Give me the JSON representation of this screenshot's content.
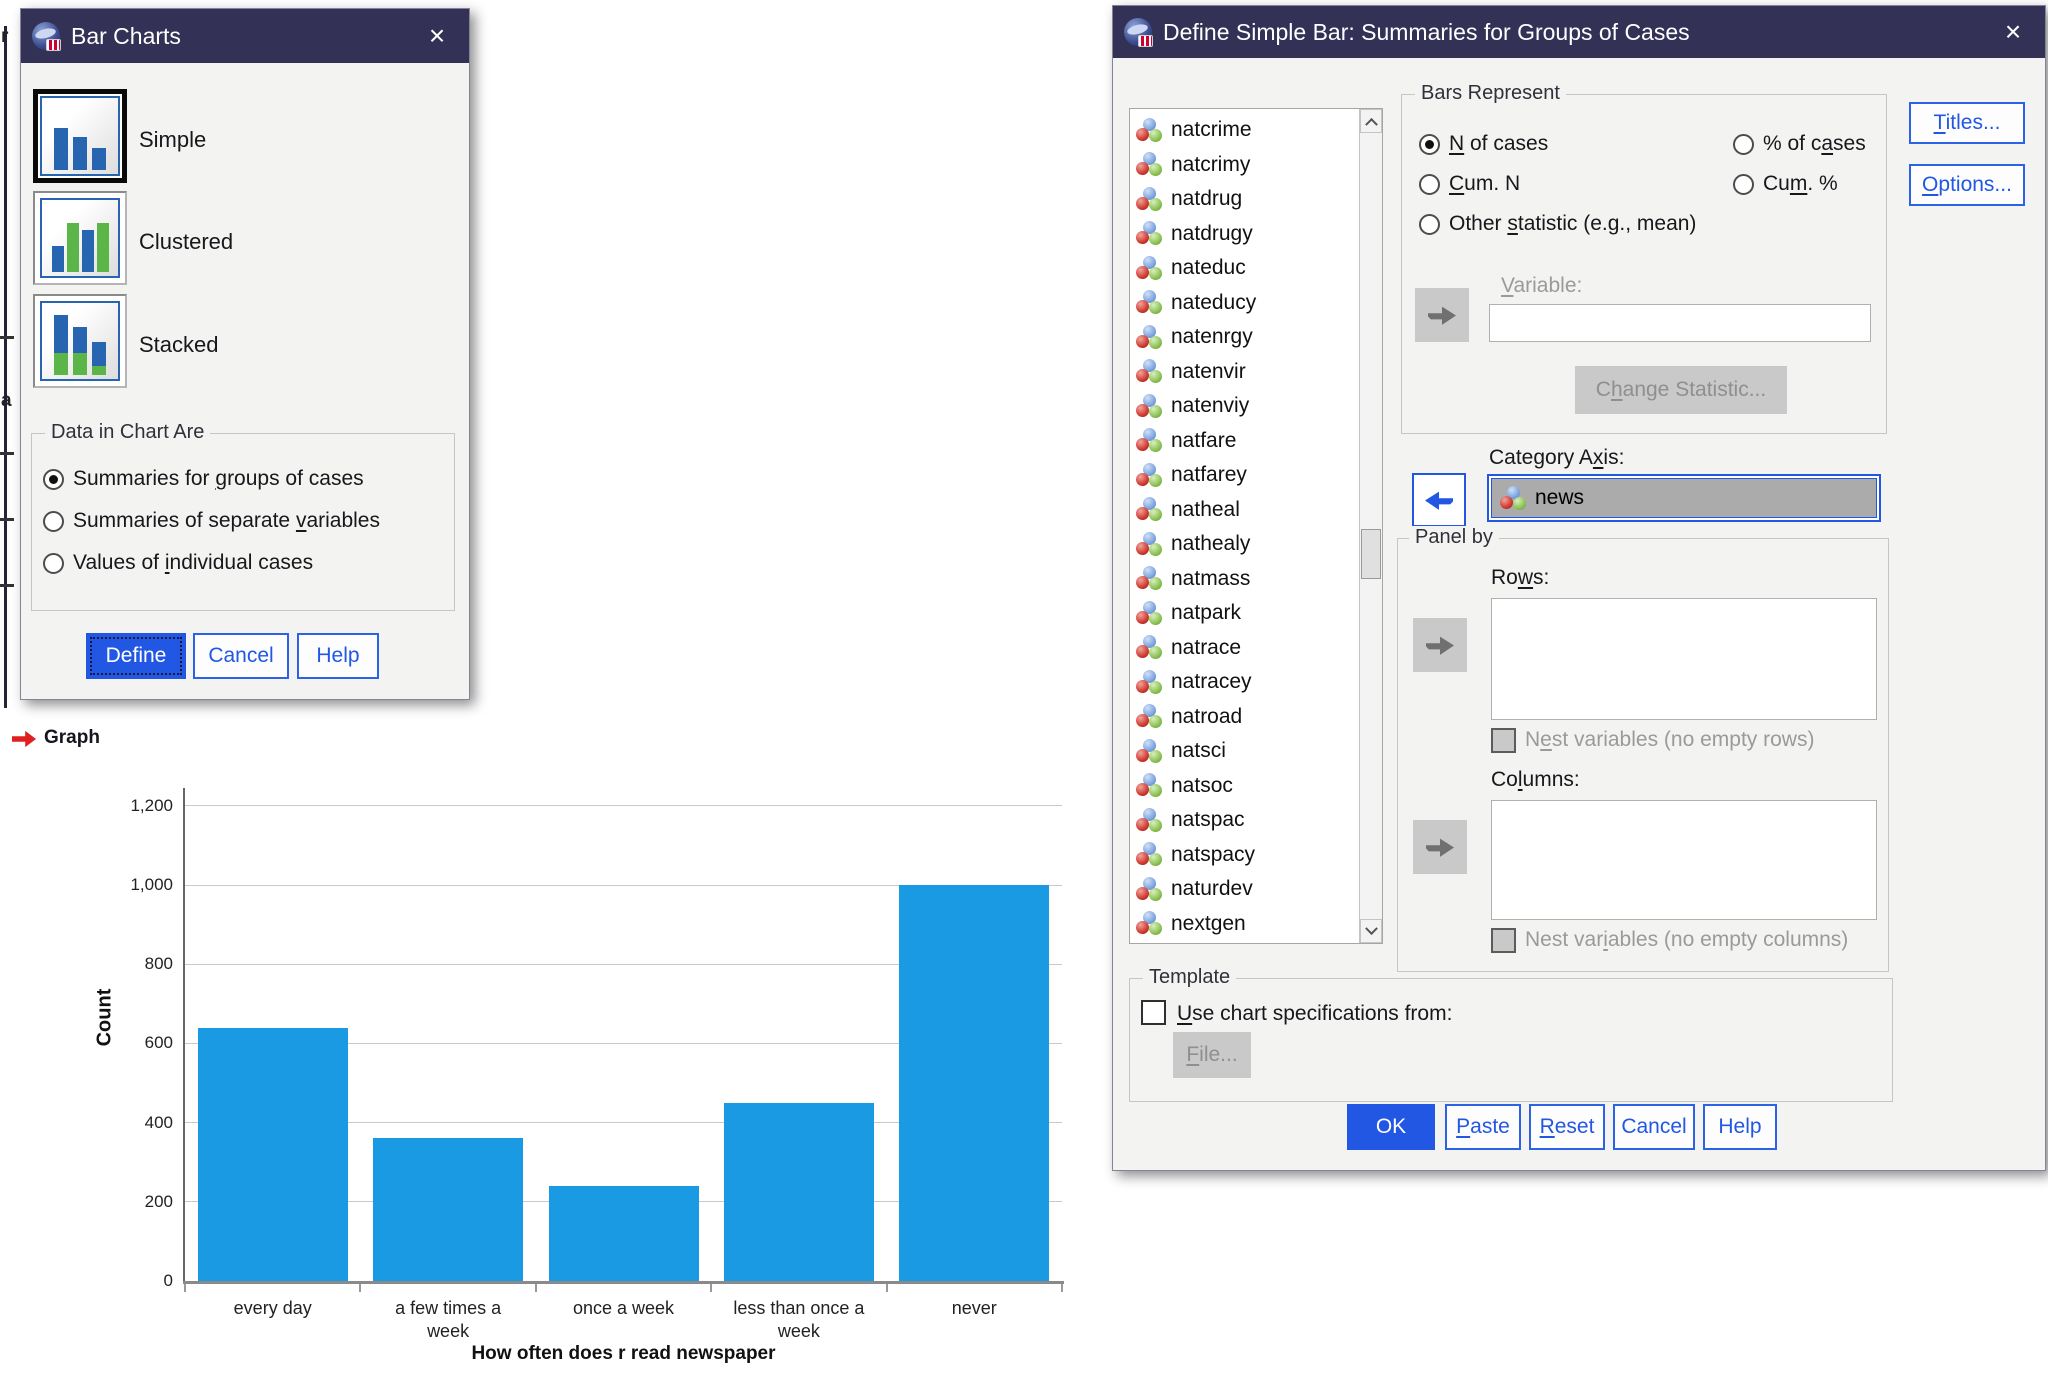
{
  "colors": {
    "title_bar": "#343156",
    "accent": "#2257e4",
    "bar_blue": "#1a9ae2",
    "tile_blue": "#2765b0",
    "tile_green": "#5cb548",
    "selected_field_bg": "#ababab"
  },
  "background": {
    "letter_top": "r",
    "letter_mid": "a"
  },
  "left_dialog": {
    "title": "Bar Charts",
    "close": "×",
    "chart_types": [
      {
        "label": "Simple",
        "selected": true
      },
      {
        "label": "Clustered",
        "selected": false
      },
      {
        "label": "Stacked",
        "selected": false
      }
    ],
    "data_group": {
      "title": "Data in Chart Are",
      "radios": [
        {
          "pre": "Summaries for ",
          "mn": "g",
          "post": "roups of cases",
          "selected": true
        },
        {
          "pre": "Summaries of separate ",
          "mn": "v",
          "post": "ariables",
          "selected": false
        },
        {
          "pre": "Values of ",
          "mn": "i",
          "post": "ndividual cases",
          "selected": false
        }
      ]
    },
    "buttons": [
      {
        "pre": "Define",
        "mn": "",
        "post": ""
      },
      {
        "pre": "Cancel",
        "mn": "",
        "post": ""
      },
      {
        "pre": "Help",
        "mn": "",
        "post": ""
      }
    ]
  },
  "log_item": {
    "label": "Graph"
  },
  "chart_data": {
    "type": "bar",
    "title": "",
    "categories": [
      "every day",
      "a few times a\nweek",
      "once a week",
      "less than once a\nweek",
      "never"
    ],
    "values": [
      640,
      360,
      240,
      450,
      1000
    ],
    "xlabel": "How often does r read newspaper",
    "ylabel": "Count",
    "yticks": [
      0,
      200,
      400,
      600,
      800,
      1000,
      1200
    ],
    "ytick_labels": [
      "0",
      "200",
      "400",
      "600",
      "800",
      "1,000",
      "1,200"
    ],
    "ylim": [
      0,
      1240
    ],
    "bar_color": "#1a9ae2",
    "grid": true,
    "legend": false
  },
  "right_dialog": {
    "title": "Define Simple Bar: Summaries for Groups of Cases",
    "close": "×",
    "variables": [
      "natcrime",
      "natcrimy",
      "natdrug",
      "natdrugy",
      "nateduc",
      "nateducy",
      "natenrgy",
      "natenvir",
      "natenviy",
      "natfare",
      "natfarey",
      "natheal",
      "nathealy",
      "natmass",
      "natpark",
      "natrace",
      "natracey",
      "natroad",
      "natsci",
      "natsoc",
      "natspac",
      "natspacy",
      "naturdev",
      "nextgen"
    ],
    "bars_represent": {
      "title": "Bars Represent",
      "radios": [
        {
          "pre": "",
          "mn": "N",
          "post": " of cases",
          "selected": true
        },
        {
          "pre": "% of c",
          "mn": "a",
          "post": "ses",
          "selected": false
        },
        {
          "pre": "",
          "mn": "C",
          "post": "um. N",
          "selected": false
        },
        {
          "pre": "Cu",
          "mn": "m",
          "post": ". %",
          "selected": false
        },
        {
          "pre": "Other ",
          "mn": "s",
          "post": "tatistic (e.g., mean)",
          "selected": false
        }
      ],
      "variable_label": {
        "pre": "",
        "mn": "V",
        "post": "ariable:"
      },
      "variable_value": "",
      "change_statistic": {
        "pre": "C",
        "mn": "h",
        "post": "ange Statistic..."
      }
    },
    "category_axis": {
      "label": {
        "pre": "Category A",
        "mn": "x",
        "post": "is:"
      },
      "value": "news"
    },
    "panel_by": {
      "title": "Panel by",
      "rows_label": {
        "pre": "Ro",
        "mn": "w",
        "post": "s:"
      },
      "nest_rows": {
        "pre": "N",
        "mn": "e",
        "post": "st variables (no empty rows)"
      },
      "columns_label": {
        "pre": "Co",
        "mn": "l",
        "post": "umns:"
      },
      "nest_columns": {
        "pre": "Nest var",
        "mn": "i",
        "post": "ables (no empty columns)"
      }
    },
    "template": {
      "title": "Template",
      "use_chart": {
        "pre": "",
        "mn": "U",
        "post": "se chart specifications from:"
      },
      "file_button": {
        "pre": "",
        "mn": "F",
        "post": "ile..."
      }
    },
    "side_buttons": [
      {
        "pre": "",
        "mn": "T",
        "post": "itles..."
      },
      {
        "pre": "",
        "mn": "O",
        "post": "ptions..."
      }
    ],
    "bottom_buttons": [
      {
        "pre": "OK",
        "mn": "",
        "post": ""
      },
      {
        "pre": "",
        "mn": "P",
        "post": "aste"
      },
      {
        "pre": "",
        "mn": "R",
        "post": "eset"
      },
      {
        "pre": "Cancel",
        "mn": "",
        "post": ""
      },
      {
        "pre": "Help",
        "mn": "",
        "post": ""
      }
    ]
  }
}
